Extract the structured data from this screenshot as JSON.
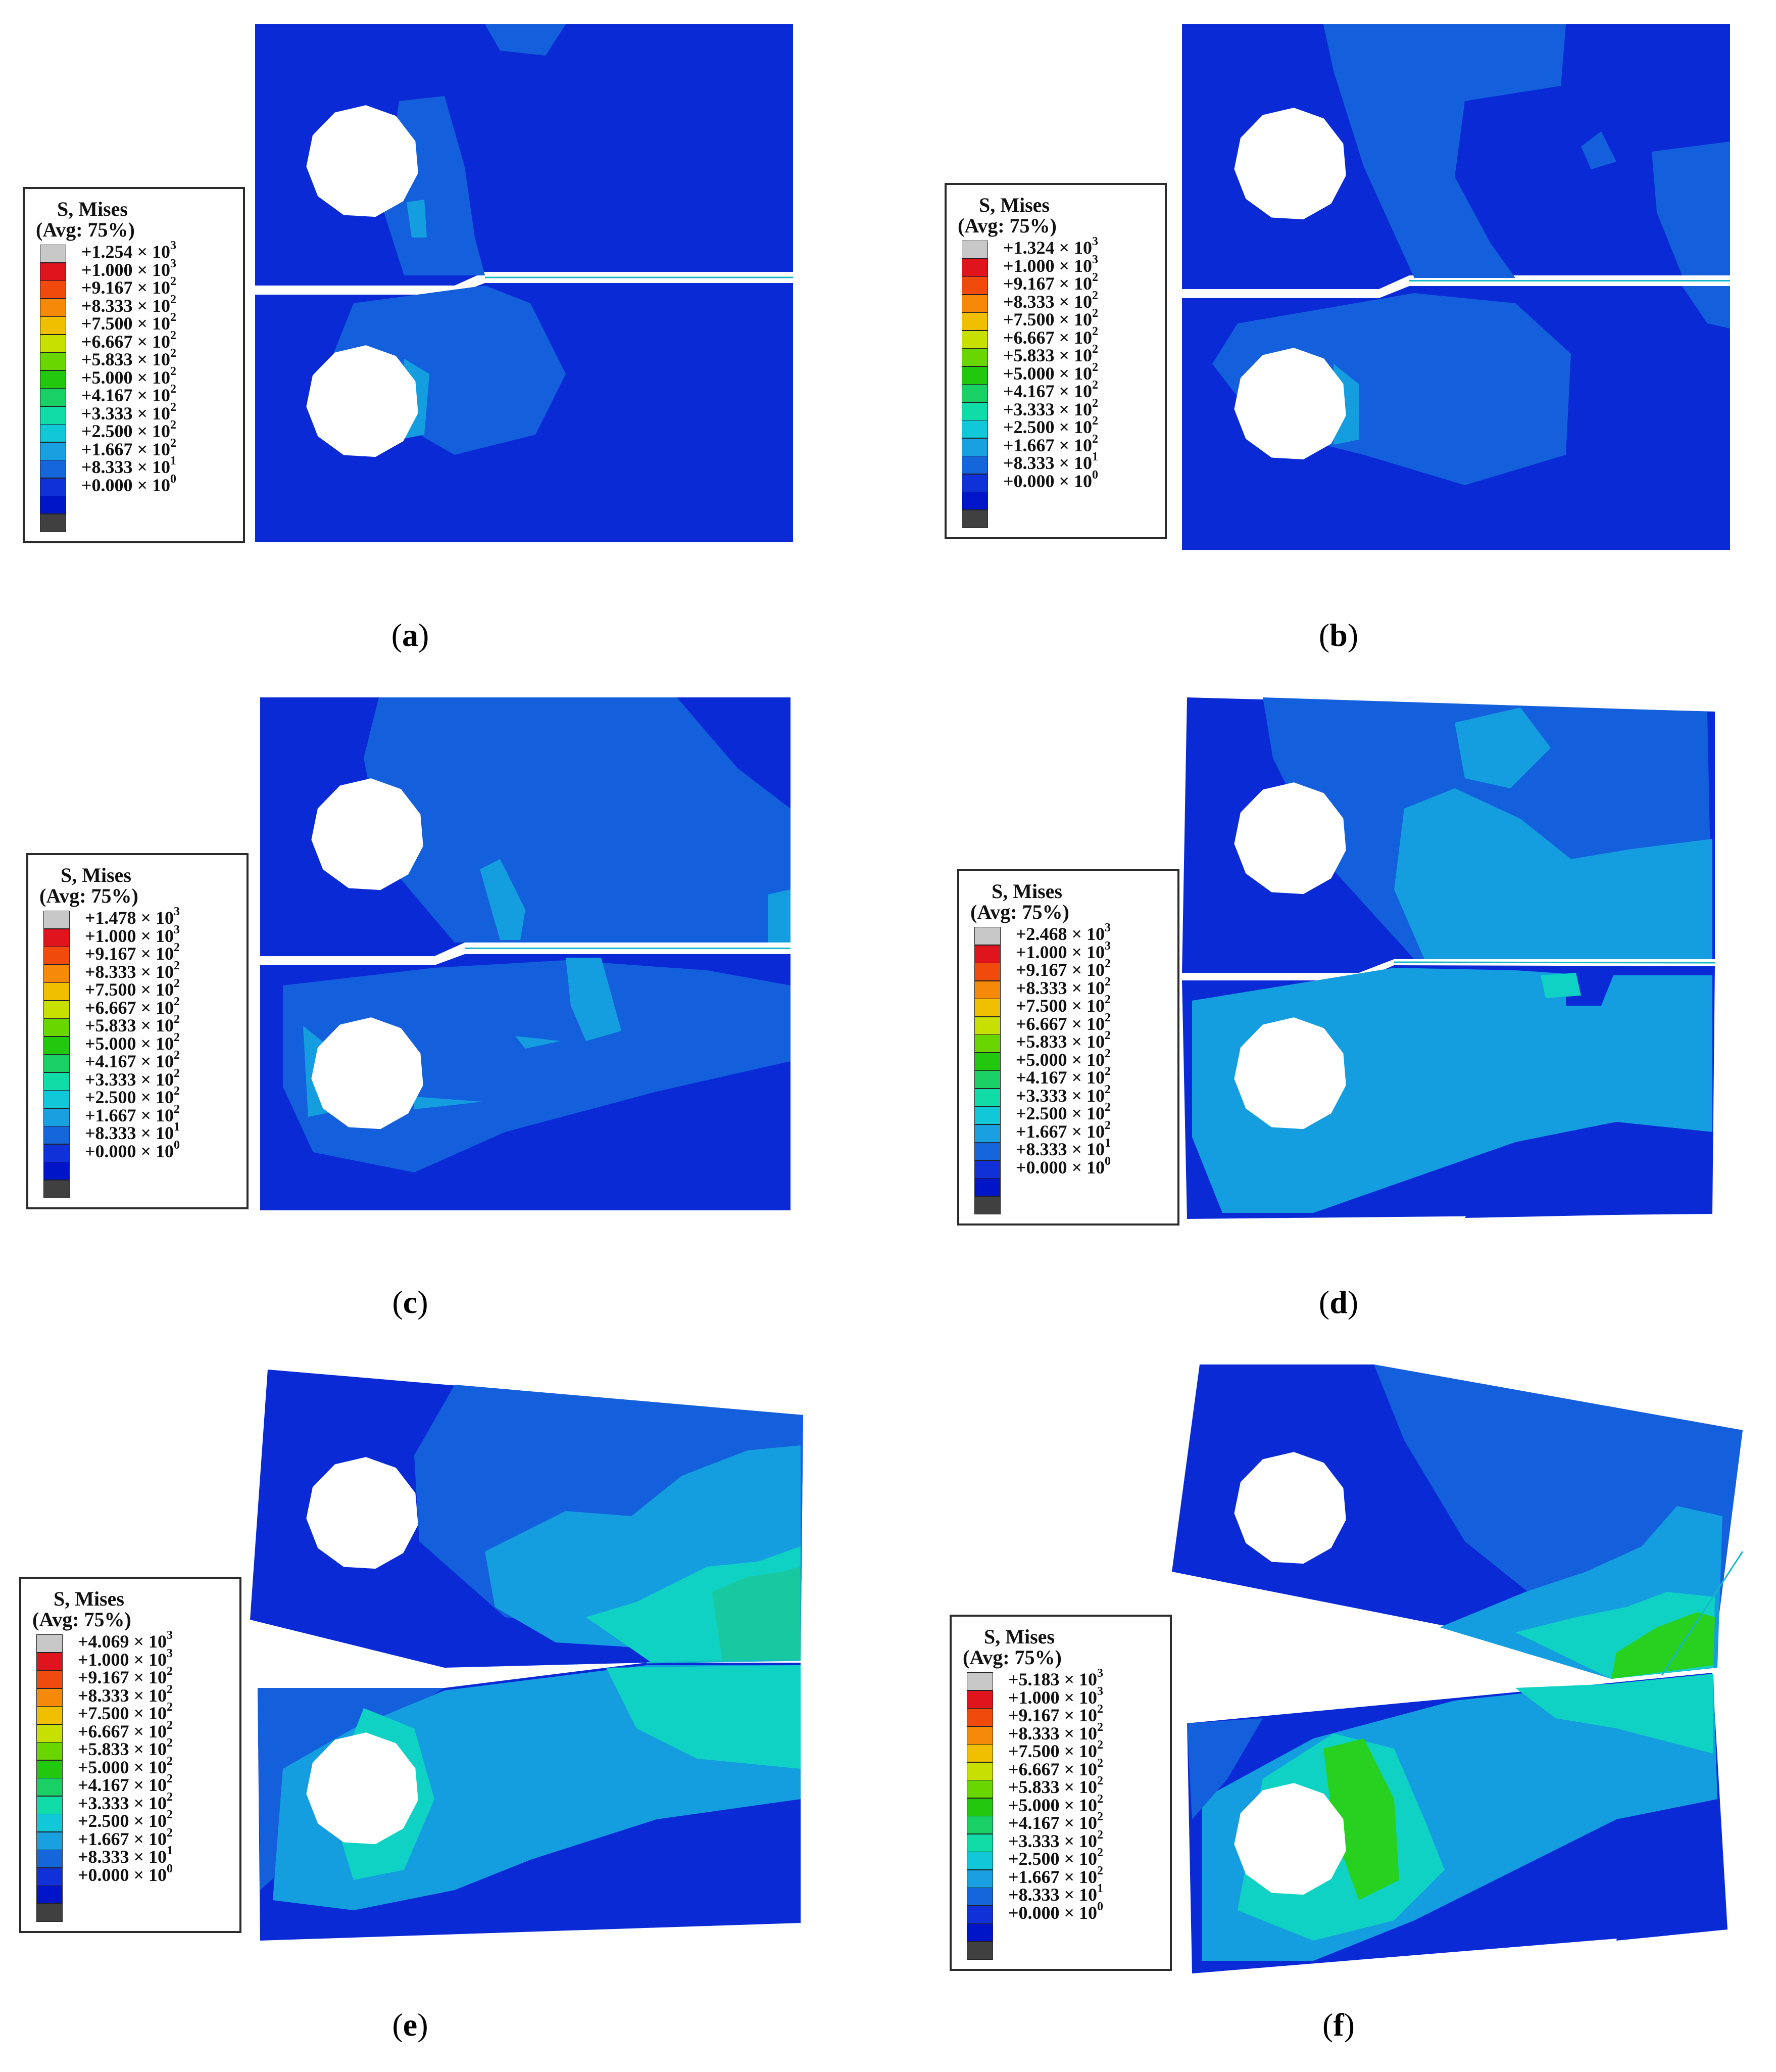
{
  "legend": {
    "title": "S, Mises",
    "subtitle": "(Avg: 75%)",
    "color_scale": [
      "#c8c8c8",
      "#e0141c",
      "#f04a0c",
      "#f68a08",
      "#f0c000",
      "#c8e000",
      "#6ad600",
      "#22c80e",
      "#18d064",
      "#10dca8",
      "#10c8d8",
      "#18a0e0",
      "#1466da",
      "#1030d8",
      "#0014c8",
      "#404040"
    ],
    "shared_labels": [
      {
        "m": "+1.000",
        "e": "3"
      },
      {
        "m": "+9.167",
        "e": "2"
      },
      {
        "m": "+8.333",
        "e": "2"
      },
      {
        "m": "+7.500",
        "e": "2"
      },
      {
        "m": "+6.667",
        "e": "2"
      },
      {
        "m": "+5.833",
        "e": "2"
      },
      {
        "m": "+5.000",
        "e": "2"
      },
      {
        "m": "+4.167",
        "e": "2"
      },
      {
        "m": "+3.333",
        "e": "2"
      },
      {
        "m": "+2.500",
        "e": "2"
      },
      {
        "m": "+1.667",
        "e": "2"
      },
      {
        "m": "+8.333",
        "e": "1"
      },
      {
        "m": "+0.000",
        "e": "0"
      }
    ],
    "times": "×",
    "base": "10"
  },
  "panels": [
    {
      "id": "a",
      "caption": "a",
      "max": {
        "m": "+1.254",
        "e": "3"
      }
    },
    {
      "id": "b",
      "caption": "b",
      "max": {
        "m": "+1.324",
        "e": "3"
      }
    },
    {
      "id": "c",
      "caption": "c",
      "max": {
        "m": "+1.478",
        "e": "3"
      }
    },
    {
      "id": "d",
      "caption": "d",
      "max": {
        "m": "+2.468",
        "e": "3"
      }
    },
    {
      "id": "e",
      "caption": "e",
      "max": {
        "m": "+4.069",
        "e": "3"
      }
    },
    {
      "id": "f",
      "caption": "f",
      "max": {
        "m": "+5.183",
        "e": "3"
      }
    }
  ],
  "colors": {
    "deep_blue": "#0a2ad6",
    "mid_blue": "#1460dc",
    "light_blue": "#149ee0",
    "cyan": "#10d2c4",
    "aqua": "#18c8a0",
    "green": "#28d020",
    "hole": "#ffffff"
  }
}
